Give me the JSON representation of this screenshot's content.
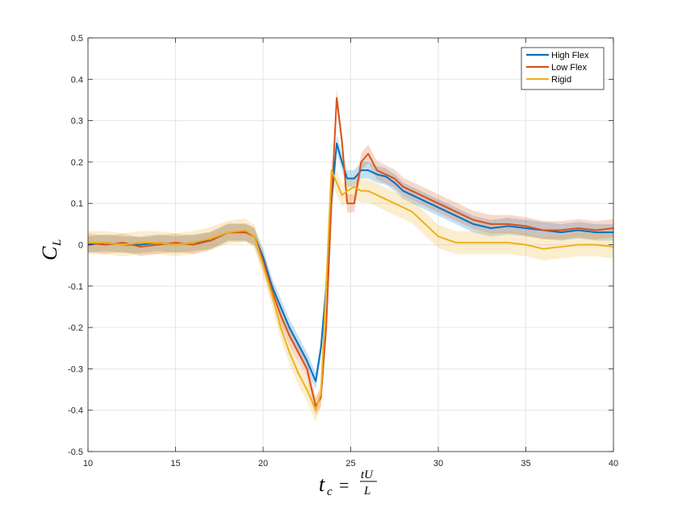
{
  "chart_data": {
    "type": "line",
    "title": "",
    "xlabel": "t_c = tU/L",
    "ylabel": "C_L",
    "xlim": [
      10,
      40
    ],
    "ylim": [
      -0.5,
      0.5
    ],
    "grid": true,
    "legend_position": "top-right",
    "x_ticks": [
      10,
      15,
      20,
      25,
      30,
      35,
      40
    ],
    "y_ticks": [
      -0.5,
      -0.4,
      -0.3,
      -0.2,
      -0.1,
      0,
      0.1,
      0.2,
      0.3,
      0.4,
      0.5
    ],
    "x_tick_labels": [
      "10",
      "15",
      "20",
      "25",
      "30",
      "35",
      "40"
    ],
    "y_tick_labels": [
      "-0.5",
      "-0.4",
      "-0.3",
      "-0.2",
      "-0.1",
      "0",
      "0.1",
      "0.2",
      "0.3",
      "0.4",
      "0.5"
    ],
    "series": [
      {
        "name": "High Flex",
        "color": "#0072BD",
        "x": [
          10,
          11,
          12,
          13,
          14,
          15,
          16,
          17,
          18,
          19,
          19.5,
          20,
          20.5,
          21,
          21.5,
          22,
          22.5,
          23,
          23.3,
          23.6,
          23.9,
          24.2,
          24.5,
          24.8,
          25.2,
          25.6,
          26,
          26.5,
          27,
          27.5,
          28,
          28.5,
          29,
          29.5,
          30,
          31,
          32,
          33,
          34,
          35,
          36,
          37,
          38,
          39,
          40
        ],
        "y": [
          0.0,
          0.005,
          0.0,
          0.0,
          0.005,
          0.0,
          0.005,
          0.01,
          0.03,
          0.03,
          0.02,
          -0.03,
          -0.1,
          -0.15,
          -0.2,
          -0.24,
          -0.28,
          -0.33,
          -0.25,
          -0.1,
          0.1,
          0.245,
          0.2,
          0.16,
          0.16,
          0.18,
          0.18,
          0.17,
          0.165,
          0.15,
          0.13,
          0.12,
          0.11,
          0.1,
          0.09,
          0.07,
          0.05,
          0.04,
          0.045,
          0.04,
          0.035,
          0.03,
          0.035,
          0.03,
          0.03
        ],
        "band_halfwidth": 0.02
      },
      {
        "name": "Low Flex",
        "color": "#D95319",
        "x": [
          10,
          11,
          12,
          13,
          14,
          15,
          16,
          17,
          18,
          19,
          19.5,
          20,
          20.5,
          21,
          21.5,
          22,
          22.5,
          23,
          23.3,
          23.6,
          23.9,
          24.2,
          24.5,
          24.8,
          25.2,
          25.6,
          26,
          26.5,
          27,
          27.5,
          28,
          28.5,
          29,
          29.5,
          30,
          31,
          32,
          33,
          34,
          35,
          36,
          37,
          38,
          39,
          40
        ],
        "y": [
          0.005,
          0.0,
          0.005,
          -0.005,
          0.0,
          0.005,
          0.0,
          0.01,
          0.03,
          0.03,
          0.02,
          -0.04,
          -0.11,
          -0.17,
          -0.22,
          -0.26,
          -0.3,
          -0.39,
          -0.37,
          -0.2,
          0.1,
          0.355,
          0.25,
          0.1,
          0.1,
          0.2,
          0.22,
          0.18,
          0.17,
          0.16,
          0.14,
          0.13,
          0.12,
          0.11,
          0.1,
          0.08,
          0.06,
          0.05,
          0.05,
          0.045,
          0.035,
          0.035,
          0.04,
          0.035,
          0.04
        ],
        "band_halfwidth": 0.022
      },
      {
        "name": "Rigid",
        "color": "#EDB120",
        "x": [
          10,
          11,
          12,
          13,
          14,
          15,
          16,
          17,
          18,
          19,
          19.5,
          20,
          20.5,
          21,
          21.5,
          22,
          22.5,
          23,
          23.3,
          23.6,
          23.9,
          24.2,
          24.5,
          24.8,
          25.2,
          25.6,
          26,
          26.5,
          27,
          27.5,
          28,
          28.5,
          29,
          29.5,
          30,
          31,
          32,
          33,
          34,
          35,
          36,
          37,
          38,
          39,
          40
        ],
        "y": [
          0.005,
          0.005,
          0.0,
          0.005,
          0.005,
          0.0,
          0.005,
          0.015,
          0.03,
          0.035,
          0.02,
          -0.05,
          -0.12,
          -0.2,
          -0.26,
          -0.31,
          -0.35,
          -0.4,
          -0.36,
          -0.1,
          0.18,
          0.15,
          0.12,
          0.13,
          0.14,
          0.13,
          0.13,
          0.12,
          0.11,
          0.1,
          0.09,
          0.08,
          0.06,
          0.04,
          0.02,
          0.005,
          0.005,
          0.005,
          0.005,
          0.0,
          -0.01,
          -0.005,
          0.0,
          0.0,
          -0.005
        ],
        "band_halfwidth": 0.028
      }
    ]
  }
}
